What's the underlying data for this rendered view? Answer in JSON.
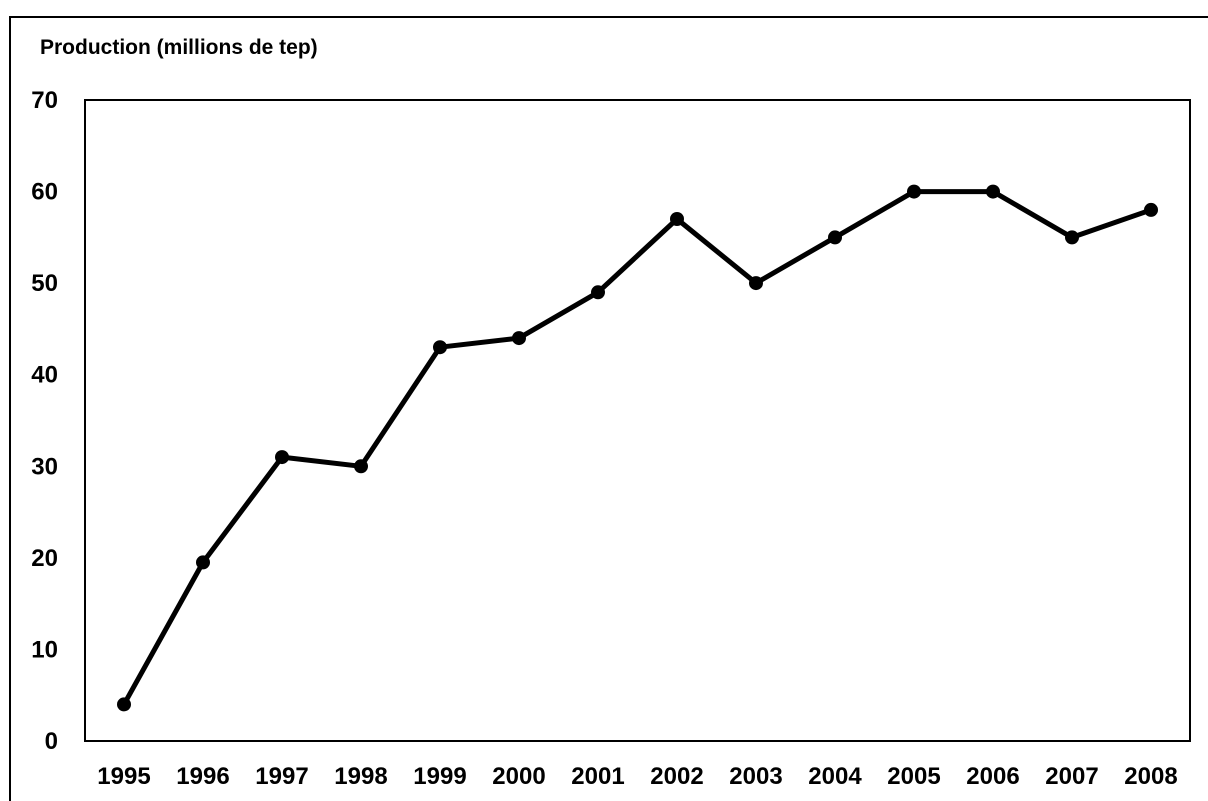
{
  "chart_data": {
    "type": "line",
    "title": "",
    "ylabel": "Production (millions de tep)",
    "xlabel": "",
    "x": [
      "1995",
      "1996",
      "1997",
      "1998",
      "1999",
      "2000",
      "2001",
      "2002",
      "2003",
      "2004",
      "2005",
      "2006",
      "2007",
      "2008"
    ],
    "series": [
      {
        "values": [
          4,
          19.5,
          31,
          30,
          43,
          44,
          49,
          57,
          50,
          55,
          60,
          60,
          55,
          58
        ]
      }
    ],
    "ylim": [
      0,
      70
    ],
    "yticks": [
      "0",
      "10",
      "20",
      "30",
      "40",
      "50",
      "60",
      "70"
    ],
    "grid": false,
    "legend": "none",
    "line_color": "#000000",
    "marker": "circle"
  }
}
